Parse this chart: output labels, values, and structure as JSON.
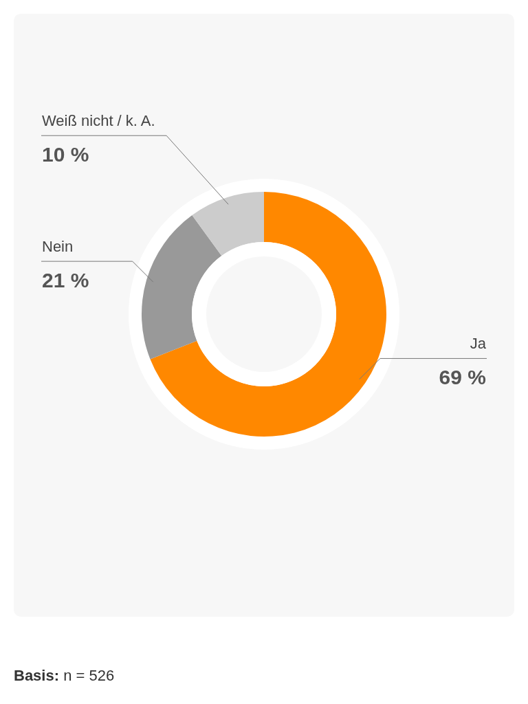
{
  "chart_data": {
    "type": "donut",
    "categories": [
      "Ja",
      "Nein",
      "Weiß nicht / k. A."
    ],
    "values": [
      69,
      21,
      10
    ],
    "value_labels": [
      "69 %",
      "21 %",
      "10 %"
    ],
    "colors": [
      "#ff8800",
      "#999999",
      "#cccccc"
    ],
    "annotations": [
      "Basis: n = 526"
    ]
  }
}
